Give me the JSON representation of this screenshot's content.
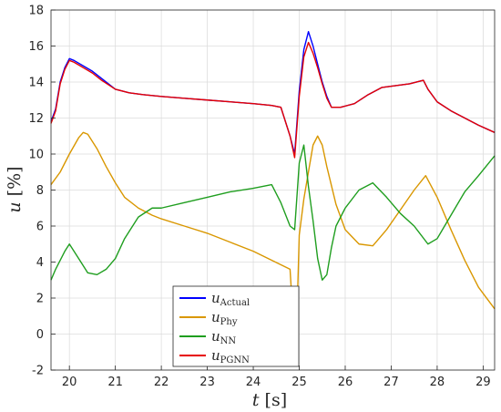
{
  "chart_data": {
    "type": "line",
    "xlabel_var": "t",
    "xlabel_unit": "[s]",
    "ylabel_var": "u",
    "ylabel_unit": "[%]",
    "xlim": [
      19.6,
      29.25
    ],
    "ylim": [
      -2,
      18
    ],
    "xticks": [
      20,
      21,
      22,
      23,
      24,
      25,
      26,
      27,
      28,
      29
    ],
    "yticks": [
      -2,
      0,
      2,
      4,
      6,
      8,
      10,
      12,
      14,
      16,
      18
    ],
    "grid": true,
    "legend_position": "bottom-center",
    "series": [
      {
        "name": "Actual",
        "color": "#0000ff",
        "x": [
          19.6,
          19.7,
          19.8,
          19.9,
          20.0,
          20.1,
          20.3,
          20.5,
          20.7,
          21.0,
          21.3,
          21.6,
          22.0,
          22.5,
          23.0,
          23.5,
          24.0,
          24.4,
          24.6,
          24.8,
          24.9,
          25.0,
          25.1,
          25.2,
          25.3,
          25.4,
          25.5,
          25.6,
          25.7,
          25.9,
          26.2,
          26.5,
          26.8,
          27.1,
          27.4,
          27.7,
          27.8,
          28.0,
          28.3,
          28.6,
          28.9,
          29.25
        ],
        "y": [
          11.8,
          12.5,
          14.0,
          14.8,
          15.3,
          15.2,
          14.9,
          14.6,
          14.2,
          13.6,
          13.4,
          13.3,
          13.2,
          13.1,
          13.0,
          12.9,
          12.8,
          12.7,
          12.6,
          11.0,
          10.0,
          13.5,
          15.8,
          16.8,
          16.0,
          15.0,
          14.0,
          13.2,
          12.6,
          12.6,
          12.8,
          13.3,
          13.7,
          13.8,
          13.9,
          14.1,
          13.6,
          12.9,
          12.4,
          12.0,
          11.6,
          11.2
        ]
      },
      {
        "name": "Phy",
        "color": "#d99700",
        "x": [
          19.6,
          19.8,
          20.0,
          20.2,
          20.3,
          20.4,
          20.6,
          20.8,
          21.0,
          21.2,
          21.5,
          21.8,
          22.0,
          22.5,
          23.0,
          23.5,
          24.0,
          24.4,
          24.8,
          24.85,
          24.9,
          24.95,
          25.0,
          25.1,
          25.2,
          25.3,
          25.4,
          25.5,
          25.6,
          25.8,
          26.0,
          26.3,
          26.6,
          26.9,
          27.2,
          27.5,
          27.75,
          28.0,
          28.3,
          28.6,
          28.9,
          29.25
        ],
        "y": [
          8.3,
          9.0,
          10.0,
          10.9,
          11.2,
          11.1,
          10.3,
          9.3,
          8.4,
          7.6,
          7.0,
          6.6,
          6.4,
          6.0,
          5.6,
          5.1,
          4.6,
          4.1,
          3.6,
          1.5,
          -1.4,
          1.0,
          5.5,
          7.5,
          9.0,
          10.5,
          11.0,
          10.5,
          9.3,
          7.2,
          5.8,
          5.0,
          4.9,
          5.8,
          6.9,
          8.0,
          8.8,
          7.6,
          5.8,
          4.1,
          2.6,
          1.4
        ]
      },
      {
        "name": "NN",
        "color": "#1f9e1f",
        "x": [
          19.6,
          19.7,
          19.9,
          20.0,
          20.2,
          20.4,
          20.6,
          20.8,
          21.0,
          21.2,
          21.5,
          21.8,
          22.0,
          22.5,
          23.0,
          23.5,
          24.0,
          24.2,
          24.4,
          24.6,
          24.8,
          24.9,
          25.0,
          25.1,
          25.2,
          25.3,
          25.4,
          25.5,
          25.6,
          25.7,
          25.8,
          26.0,
          26.3,
          26.6,
          26.9,
          27.2,
          27.5,
          27.8,
          28.0,
          28.3,
          28.6,
          28.9,
          29.25
        ],
        "y": [
          3.0,
          3.6,
          4.6,
          5.0,
          4.2,
          3.4,
          3.3,
          3.6,
          4.2,
          5.3,
          6.5,
          7.0,
          7.0,
          7.3,
          7.6,
          7.9,
          8.1,
          8.2,
          8.3,
          7.3,
          6.0,
          5.8,
          9.5,
          10.5,
          8.2,
          6.3,
          4.2,
          3.0,
          3.3,
          4.8,
          6.0,
          7.0,
          8.0,
          8.4,
          7.6,
          6.7,
          6.0,
          5.0,
          5.3,
          6.6,
          7.9,
          8.8,
          9.9
        ]
      },
      {
        "name": "PGNN",
        "color": "#e60000",
        "x": [
          19.6,
          19.7,
          19.8,
          19.9,
          20.0,
          20.1,
          20.3,
          20.5,
          20.7,
          21.0,
          21.3,
          21.6,
          22.0,
          22.5,
          23.0,
          23.5,
          24.0,
          24.4,
          24.6,
          24.8,
          24.9,
          25.0,
          25.1,
          25.2,
          25.3,
          25.4,
          25.5,
          25.6,
          25.7,
          25.9,
          26.2,
          26.5,
          26.8,
          27.1,
          27.4,
          27.7,
          27.8,
          28.0,
          28.3,
          28.6,
          28.9,
          29.25
        ],
        "y": [
          11.7,
          12.4,
          13.9,
          14.7,
          15.2,
          15.1,
          14.8,
          14.5,
          14.1,
          13.6,
          13.4,
          13.3,
          13.2,
          13.1,
          13.0,
          12.9,
          12.8,
          12.7,
          12.6,
          11.0,
          9.8,
          13.2,
          15.4,
          16.2,
          15.6,
          14.8,
          13.9,
          13.1,
          12.6,
          12.6,
          12.8,
          13.3,
          13.7,
          13.8,
          13.9,
          14.1,
          13.6,
          12.9,
          12.4,
          12.0,
          11.6,
          11.2
        ]
      }
    ]
  }
}
